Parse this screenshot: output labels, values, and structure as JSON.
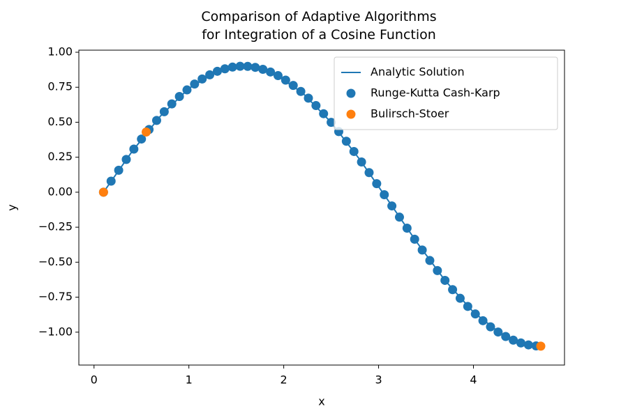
{
  "chart_data": {
    "type": "scatter",
    "title": "Comparison of Adaptive Algorithms\nfor Integration of a Cosine Function",
    "x_label": "x",
    "y_label": "y",
    "xlim": [
      -0.16,
      4.96
    ],
    "ylim": [
      -1.235,
      1.015
    ],
    "xticks": [
      0,
      1,
      2,
      3,
      4
    ],
    "yticks": [
      {
        "value": -1,
        "label": "−1.00"
      },
      {
        "value": -0.75,
        "label": "−0.75"
      },
      {
        "value": -0.5,
        "label": "−0.50"
      },
      {
        "value": -0.25,
        "label": "−0.25"
      },
      {
        "value": 0,
        "label": "0.00"
      },
      {
        "value": 0.25,
        "label": "0.25"
      },
      {
        "value": 0.5,
        "label": "0.50"
      },
      {
        "value": 0.75,
        "label": "0.75"
      },
      {
        "value": 1,
        "label": "1.00"
      }
    ],
    "legend": "upper right",
    "series": [
      {
        "name": "Analytic Solution",
        "type": "line",
        "color": "#1f77b4",
        "x": [
          0.1,
          0.4,
          0.7,
          1.0,
          1.3,
          1.6,
          1.9,
          2.2,
          2.5,
          2.8,
          3.1,
          3.4,
          3.7,
          4.0,
          4.3,
          4.6,
          4.7
        ],
        "values": [
          0,
          0.29,
          0.544,
          0.742,
          0.864,
          0.9,
          0.847,
          0.709,
          0.499,
          0.235,
          -0.058,
          -0.355,
          -0.63,
          -0.857,
          -1.016,
          -1.094,
          -1.1
        ]
      },
      {
        "name": "Runge-Kutta Cash-Karp",
        "type": "scatter",
        "color": "#1f77b4",
        "x": [
          0.1,
          0.18,
          0.26,
          0.34,
          0.42,
          0.5,
          0.58,
          0.66,
          0.74,
          0.82,
          0.9,
          0.98,
          1.06,
          1.14,
          1.22,
          1.3,
          1.38,
          1.46,
          1.54,
          1.62,
          1.7,
          1.78,
          1.86,
          1.94,
          2.02,
          2.1,
          2.18,
          2.26,
          2.34,
          2.42,
          2.5,
          2.58,
          2.66,
          2.74,
          2.82,
          2.9,
          2.98,
          3.06,
          3.14,
          3.22,
          3.3,
          3.38,
          3.46,
          3.54,
          3.62,
          3.7,
          3.78,
          3.86,
          3.94,
          4.02,
          4.1,
          4.18,
          4.26,
          4.34,
          4.42,
          4.5,
          4.58,
          4.66
        ],
        "values": [
          0,
          0.079,
          0.157,
          0.234,
          0.308,
          0.38,
          0.448,
          0.513,
          0.575,
          0.631,
          0.684,
          0.731,
          0.773,
          0.809,
          0.839,
          0.864,
          0.882,
          0.894,
          0.9,
          0.899,
          0.892,
          0.878,
          0.859,
          0.833,
          0.801,
          0.763,
          0.72,
          0.672,
          0.619,
          0.561,
          0.499,
          0.433,
          0.364,
          0.291,
          0.216,
          0.14,
          0.061,
          -0.018,
          -0.098,
          -0.178,
          -0.257,
          -0.336,
          -0.413,
          -0.488,
          -0.56,
          -0.63,
          -0.696,
          -0.758,
          -0.816,
          -0.87,
          -0.918,
          -0.962,
          -0.999,
          -1.031,
          -1.057,
          -1.077,
          -1.091,
          -1.098
        ]
      },
      {
        "name": "Bulirsch-Stoer",
        "type": "scatter",
        "color": "#ff7f0e",
        "x": [
          0.1,
          0.55,
          4.71
        ],
        "values": [
          0,
          0.43,
          -1.1
        ]
      }
    ]
  }
}
